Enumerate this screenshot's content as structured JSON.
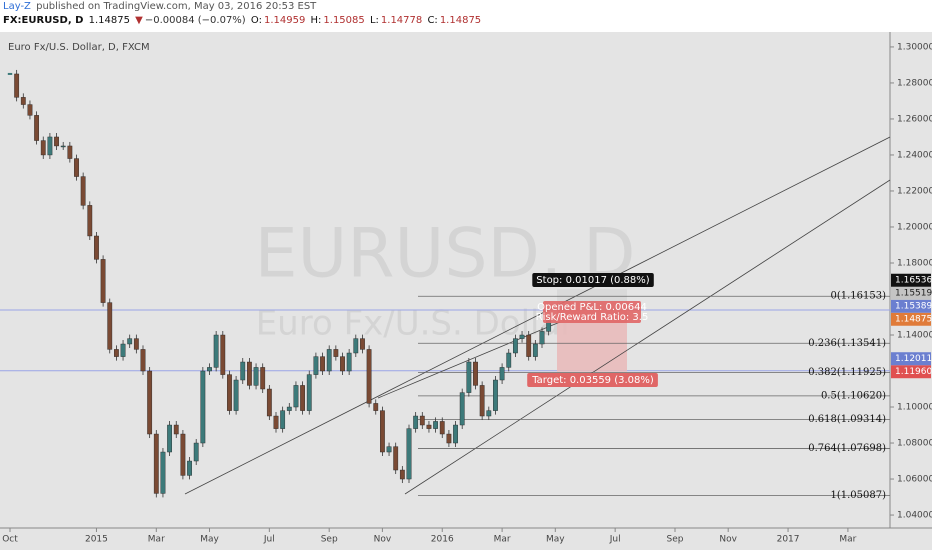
{
  "header": {
    "author": "Lay-Z",
    "published": "published on TradingView.com, May 03, 2016 20:53 EST",
    "symbol": "FX:EURUSD, D",
    "last": "1.14875",
    "arrow": "▼",
    "change": "−0.00084 (−0.07%)",
    "open_label": "O:",
    "open": "1.14959",
    "high_label": "H:",
    "high": "1.15085",
    "low_label": "L:",
    "low": "1.14778",
    "close_label": "C:",
    "close": "1.14875"
  },
  "chart_data": {
    "type": "candlestick",
    "title": "Euro Fx/U.S. Dollar, D, FXCM",
    "watermark": "EURUSD, D",
    "watermark_sub": "Euro Fx/U.S. Dollar",
    "up_color": "#3d7a7a",
    "down_color": "#7a4a34",
    "categories": [
      "Oct",
      null,
      null,
      null,
      null,
      null,
      null,
      null,
      null,
      null,
      null,
      null,
      null,
      "2015",
      null,
      null,
      null,
      null,
      null,
      null,
      null,
      null,
      "Mar",
      null,
      null,
      null,
      null,
      null,
      null,
      null,
      "May",
      null,
      null,
      null,
      null,
      null,
      null,
      null,
      null,
      "Jul",
      null,
      null,
      null,
      null,
      null,
      null,
      null,
      null,
      "Sep",
      null,
      null,
      null,
      null,
      null,
      null,
      null,
      "Nov",
      null,
      null,
      null,
      null,
      null,
      null,
      null,
      null,
      "2016",
      null,
      null,
      null,
      null,
      null,
      null,
      null,
      null,
      "Mar",
      null,
      null,
      null,
      null,
      null,
      null,
      null,
      "May",
      null,
      null,
      null,
      null,
      null,
      null,
      null,
      null,
      "Jul",
      null,
      null,
      null,
      null,
      null,
      null,
      null,
      null,
      "Sep",
      null,
      null,
      null,
      null,
      null,
      null,
      null,
      "Nov",
      null,
      null,
      null,
      null,
      null,
      null,
      null,
      null,
      "2017",
      null,
      null,
      null,
      null,
      null,
      null,
      null,
      null,
      "Mar",
      null
    ],
    "values": [
      1.285,
      1.272,
      1.268,
      1.262,
      1.248,
      1.24,
      1.25,
      1.245,
      1.245,
      1.238,
      1.228,
      1.212,
      1.195,
      1.182,
      1.158,
      1.132,
      1.128,
      1.135,
      1.138,
      1.132,
      1.12,
      1.085,
      1.052,
      1.075,
      1.09,
      1.085,
      1.062,
      1.07,
      1.08,
      1.12,
      1.122,
      1.14,
      1.118,
      1.098,
      1.115,
      1.125,
      1.112,
      1.122,
      1.11,
      1.095,
      1.088,
      1.098,
      1.1,
      1.112,
      1.098,
      1.118,
      1.128,
      1.12,
      1.132,
      1.128,
      1.12,
      1.13,
      1.138,
      1.132,
      1.102,
      1.098,
      1.075,
      1.078,
      1.065,
      1.06,
      1.088,
      1.095,
      1.09,
      1.088,
      1.092,
      1.085,
      1.08,
      1.09,
      1.108,
      1.125,
      1.112,
      1.095,
      1.098,
      1.115,
      1.122,
      1.13,
      1.138,
      1.14,
      1.128,
      1.135,
      1.142,
      1.148,
      null,
      null,
      null,
      null,
      null,
      null,
      null,
      null,
      null,
      null,
      null,
      null,
      null,
      null,
      null,
      null,
      null,
      null,
      null,
      null,
      null,
      null,
      null,
      null,
      null,
      null,
      null,
      null,
      null,
      null,
      null,
      null,
      null,
      null,
      null,
      null,
      null,
      null,
      null,
      null,
      null,
      null,
      null,
      null,
      null,
      null
    ],
    "ylim": [
      1.0328,
      1.3083
    ],
    "yticks": [
      {
        "value": 1.3,
        "label": "1.30000"
      },
      {
        "value": 1.28,
        "label": "1.28000"
      },
      {
        "value": 1.26,
        "label": "1.26000"
      },
      {
        "value": 1.24,
        "label": "1.24000"
      },
      {
        "value": 1.22,
        "label": "1.22000"
      },
      {
        "value": 1.2,
        "label": "1.20000"
      },
      {
        "value": 1.18,
        "label": "1.18000"
      },
      {
        "value": 1.14,
        "label": "1.14000"
      },
      {
        "value": 1.1,
        "label": "1.10000"
      },
      {
        "value": 1.08,
        "label": "1.08000"
      },
      {
        "value": 1.06,
        "label": "1.06000"
      },
      {
        "value": 1.04,
        "label": "1.04000"
      }
    ],
    "price_labels": [
      {
        "value": 1.16536,
        "label": "1.16536",
        "color": "#111111",
        "text_color": "#ffffff"
      },
      {
        "value": 1.15519,
        "label": "1.15519",
        "color": "#c4c4c4",
        "text_color": "#222222"
      },
      {
        "value": 1.15389,
        "label": "1.15389",
        "color": "#6b7fd0",
        "text_color": "#ffffff"
      },
      {
        "value": 1.14875,
        "label": "1.14875",
        "color": "#e07b39",
        "text_color": "#ffffff"
      },
      {
        "value": 1.12011,
        "label": "1.12011",
        "color": "#6b7fd0",
        "text_color": "#ffffff"
      },
      {
        "value": 1.1196,
        "label": "1.11960",
        "color": "#e05050",
        "text_color": "#ffffff"
      }
    ],
    "fib_levels": [
      {
        "value": 1.16153,
        "label": "0(1.16153)"
      },
      {
        "value": 1.13541,
        "label": "0.236(1.13541)"
      },
      {
        "value": 1.11925,
        "label": "0.382(1.11925)"
      },
      {
        "value": 1.1062,
        "label": "0.5(1.10620)"
      },
      {
        "value": 1.09314,
        "label": "0.618(1.09314)"
      },
      {
        "value": 1.07698,
        "label": "0.764(1.07698)"
      },
      {
        "value": 1.05087,
        "label": "1(1.05087)"
      }
    ],
    "position": {
      "stop": "Stop: 0.01017 (0.88%)",
      "pnl": "Opened P&L: 0.00644",
      "ratio": "Risk/Reward Ratio: 3.5",
      "target": "Target: 0.03559 (3.08%)"
    }
  }
}
